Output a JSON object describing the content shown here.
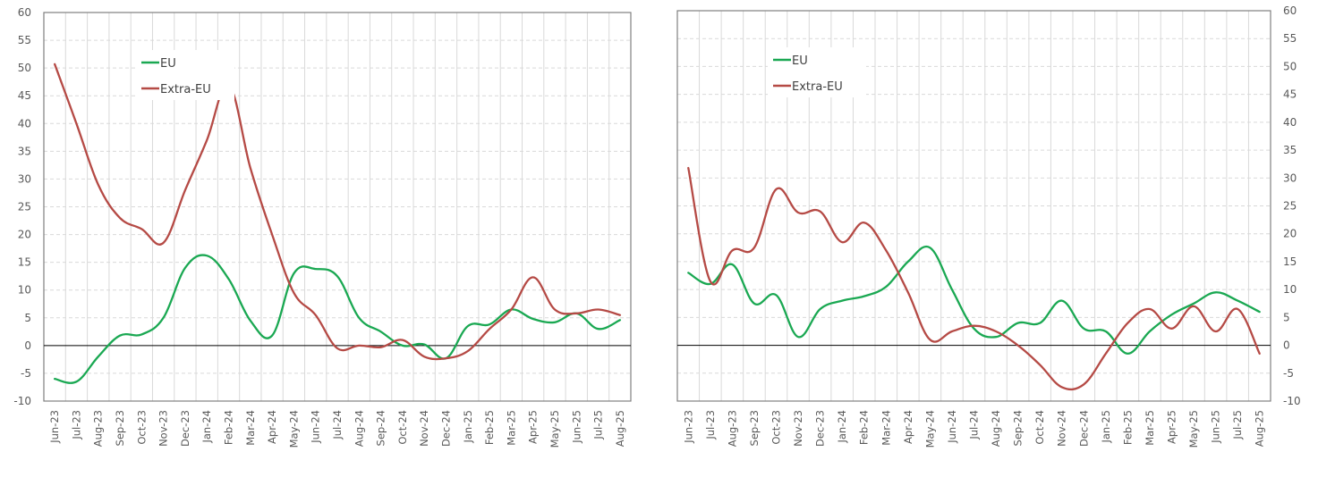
{
  "chart_data": [
    {
      "type": "line",
      "title": "",
      "xlabel": "",
      "ylabel": "",
      "ylim": [
        -10,
        60
      ],
      "yticks": [
        -10,
        -5,
        0,
        5,
        10,
        15,
        20,
        25,
        30,
        35,
        40,
        45,
        50,
        55,
        60
      ],
      "yaxis_position": "left",
      "grid": true,
      "legend_position": "upper-left-inside",
      "categories": [
        "Jun-23",
        "Jul-23",
        "Aug-23",
        "Sep-23",
        "Oct-23",
        "Nov-23",
        "Dec-23",
        "Jan-24",
        "Feb-24",
        "Mar-24",
        "Apr-24",
        "May-24",
        "Jun-24",
        "Jul-24",
        "Aug-24",
        "Sep-24",
        "Oct-24",
        "Nov-24",
        "Dec-24",
        "Jan-25",
        "Feb-25",
        "Mar-25",
        "Apr-25",
        "May-25",
        "Jun-25",
        "Jul-25",
        "Aug-25"
      ],
      "series": [
        {
          "name": "EU",
          "color": "#1aa852",
          "values": [
            -6,
            -6.5,
            -2,
            1.8,
            2,
            5,
            14,
            16.2,
            12,
            4.5,
            1.8,
            13,
            13.8,
            12.5,
            5,
            2.5,
            0,
            0.2,
            -2.3,
            3.5,
            3.8,
            6.5,
            4.8,
            4.2,
            5.8,
            3,
            4.6
          ]
        },
        {
          "name": "Extra-EU",
          "color": "#b54a45",
          "values": [
            50.7,
            40,
            29,
            23,
            21,
            18.5,
            28,
            37,
            47,
            32,
            20,
            9.5,
            5.5,
            -0.5,
            0,
            -0.3,
            1,
            -2,
            -2.3,
            -1,
            3,
            6.5,
            12.3,
            6.5,
            5.8,
            6.5,
            5.5
          ]
        }
      ]
    },
    {
      "type": "line",
      "title": "",
      "xlabel": "",
      "ylabel": "",
      "ylim": [
        -10,
        60
      ],
      "yticks": [
        -10,
        -5,
        0,
        5,
        10,
        15,
        20,
        25,
        30,
        35,
        40,
        45,
        50,
        55,
        60
      ],
      "yaxis_position": "right",
      "grid": true,
      "legend_position": "upper-left-inside",
      "categories": [
        "Jun-23",
        "Jul-23",
        "Aug-23",
        "Sep-23",
        "Oct-23",
        "Nov-23",
        "Dec-23",
        "Jan-24",
        "Feb-24",
        "Mar-24",
        "Apr-24",
        "May-24",
        "Jun-24",
        "Jul-24",
        "Aug-24",
        "Sep-24",
        "Oct-24",
        "Nov-24",
        "Dec-24",
        "Jan-25",
        "Feb-25",
        "Mar-25",
        "Apr-25",
        "May-25",
        "Jun-25",
        "Jul-25",
        "Aug-25"
      ],
      "series": [
        {
          "name": "EU",
          "color": "#1aa852",
          "values": [
            13,
            11,
            14.5,
            7.5,
            9,
            1.5,
            6.5,
            8,
            8.8,
            10.5,
            15,
            17.5,
            10,
            3,
            1.5,
            4,
            4,
            8,
            3,
            2.5,
            -1.5,
            2.5,
            5.5,
            7.5,
            9.5,
            8,
            6
          ]
        },
        {
          "name": "Extra-EU",
          "color": "#b54a45",
          "values": [
            31.8,
            11.5,
            17,
            17.5,
            28,
            23.8,
            24,
            18.5,
            22,
            17,
            9.5,
            1,
            2.5,
            3.5,
            2.5,
            0,
            -3.5,
            -7.5,
            -7,
            -1.5,
            4,
            6.5,
            3,
            7,
            2.5,
            6.5,
            -1.5
          ]
        }
      ]
    }
  ],
  "legend": {
    "eu_label": "EU",
    "extra_eu_label": "Extra-EU"
  }
}
